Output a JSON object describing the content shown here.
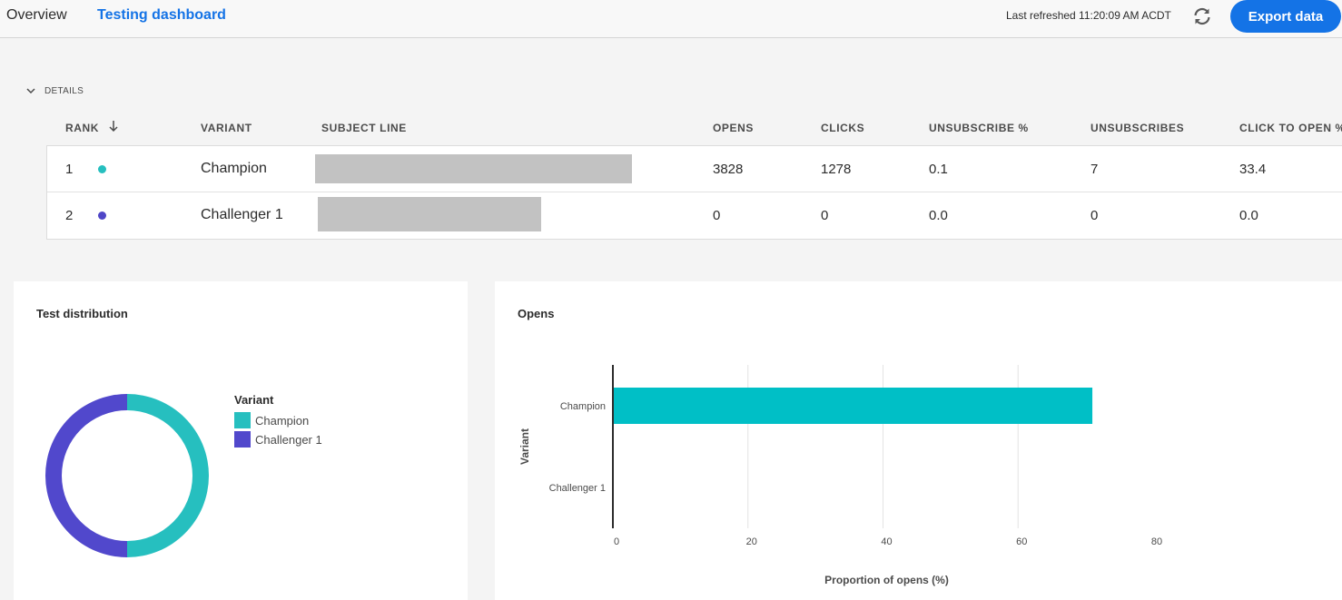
{
  "nav": {
    "tabs": [
      {
        "label": "Overview"
      },
      {
        "label": "Testing dashboard"
      }
    ],
    "last_refreshed": "Last refreshed 11:20:09 AM ACDT",
    "refresh_icon": "refresh-icon",
    "export_label": "Export data",
    "accent_color": "#1473e6"
  },
  "details": {
    "toggle_label": "DETAILS",
    "columns": [
      "RANK",
      "VARIANT",
      "SUBJECT LINE",
      "OPENS",
      "CLICKS",
      "UNSUBSCRIBE %",
      "UNSUBSCRIBES",
      "CLICK TO OPEN %"
    ],
    "rows": [
      {
        "rank": "1",
        "variant": "Champion",
        "color": "#26bfbf",
        "opens": "3828",
        "clicks": "1278",
        "unsubscribe_pct": "0.1",
        "unsubscribes": "7",
        "click_to_open_pct": "33.4"
      },
      {
        "rank": "2",
        "variant": "Challenger 1",
        "color": "#4f46c7",
        "opens": "0",
        "clicks": "0",
        "unsubscribe_pct": "0.0",
        "unsubscribes": "0",
        "click_to_open_pct": "0.0"
      }
    ]
  },
  "distribution_card": {
    "title": "Test distribution",
    "legend_title": "Variant",
    "legend": [
      {
        "label": "Champion",
        "color": "#26bfbf"
      },
      {
        "label": "Challenger 1",
        "color": "#5148cc"
      }
    ]
  },
  "opens_card": {
    "title": "Opens"
  },
  "chart_data": [
    {
      "type": "pie",
      "title": "Test distribution",
      "legend_title": "Variant",
      "categories": [
        "Champion",
        "Challenger 1"
      ],
      "values": [
        50,
        50
      ],
      "colors": [
        "#26bfbf",
        "#5148cc"
      ],
      "donut": true,
      "legend_position": "right"
    },
    {
      "type": "bar",
      "orientation": "horizontal",
      "title": "Opens",
      "categories": [
        "Champion",
        "Challenger 1"
      ],
      "values": [
        71,
        0
      ],
      "xlabel": "Proportion of opens (%)",
      "ylabel": "Variant",
      "xlim": [
        0,
        80
      ],
      "xticks": [
        0,
        20,
        40,
        60,
        80
      ],
      "color": "#00bfc6",
      "grid": true
    }
  ]
}
